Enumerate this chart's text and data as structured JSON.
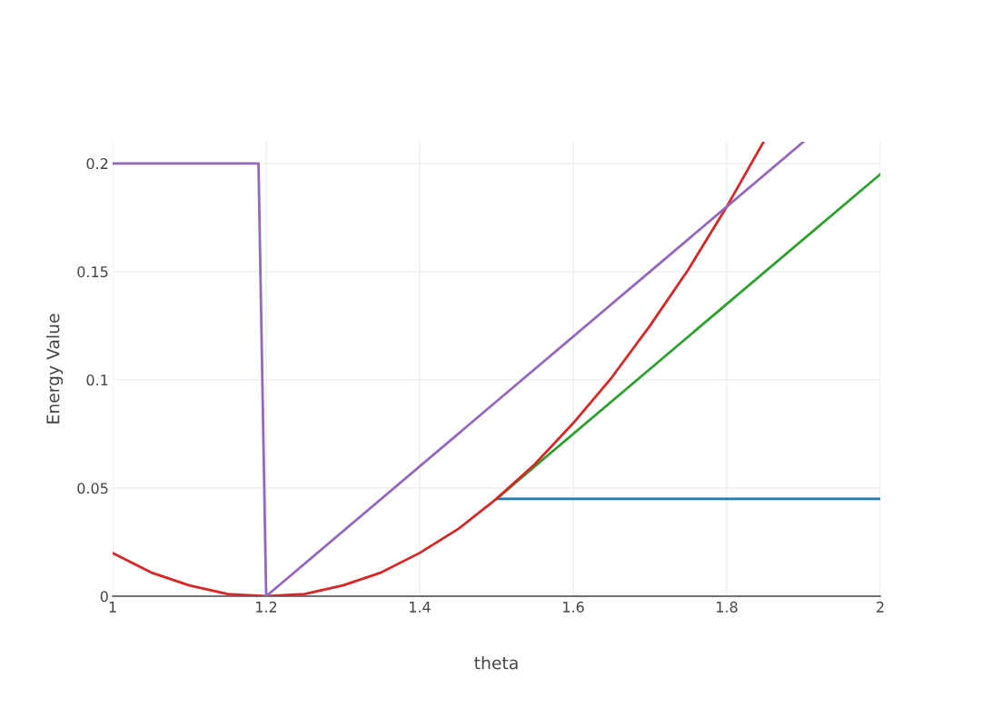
{
  "chart_data": {
    "type": "line",
    "xlabel": "theta",
    "ylabel": "Energy Value",
    "xlim": [
      1,
      2
    ],
    "ylim": [
      0,
      0.21
    ],
    "xticks": [
      1,
      1.2,
      1.4,
      1.6,
      1.8,
      2
    ],
    "yticks": [
      0,
      0.05,
      0.1,
      0.15,
      0.2
    ],
    "grid": true,
    "series": [
      {
        "color": "#1f77b4",
        "x": [
          1.5,
          2
        ],
        "values": [
          0.045,
          0.045
        ]
      },
      {
        "color": "#2ca02c",
        "x": [
          1.5,
          2
        ],
        "values": [
          0.045,
          0.195
        ]
      },
      {
        "color": "#d62728",
        "x": [
          1,
          1.05,
          1.1,
          1.15,
          1.2,
          1.25,
          1.3,
          1.35,
          1.4,
          1.45,
          1.5,
          1.55,
          1.6,
          1.65,
          1.7,
          1.75,
          1.8,
          1.848
        ],
        "values": [
          0.02,
          0.011,
          0.005,
          0.001,
          0,
          0.001,
          0.005,
          0.011,
          0.02,
          0.031,
          0.045,
          0.061,
          0.08,
          0.101,
          0.125,
          0.151,
          0.18,
          0.21
        ]
      },
      {
        "color": "#9467bd",
        "x": [
          1,
          1.19,
          1.2,
          1.9
        ],
        "values": [
          0.2,
          0.2,
          0,
          0.21
        ]
      }
    ]
  }
}
